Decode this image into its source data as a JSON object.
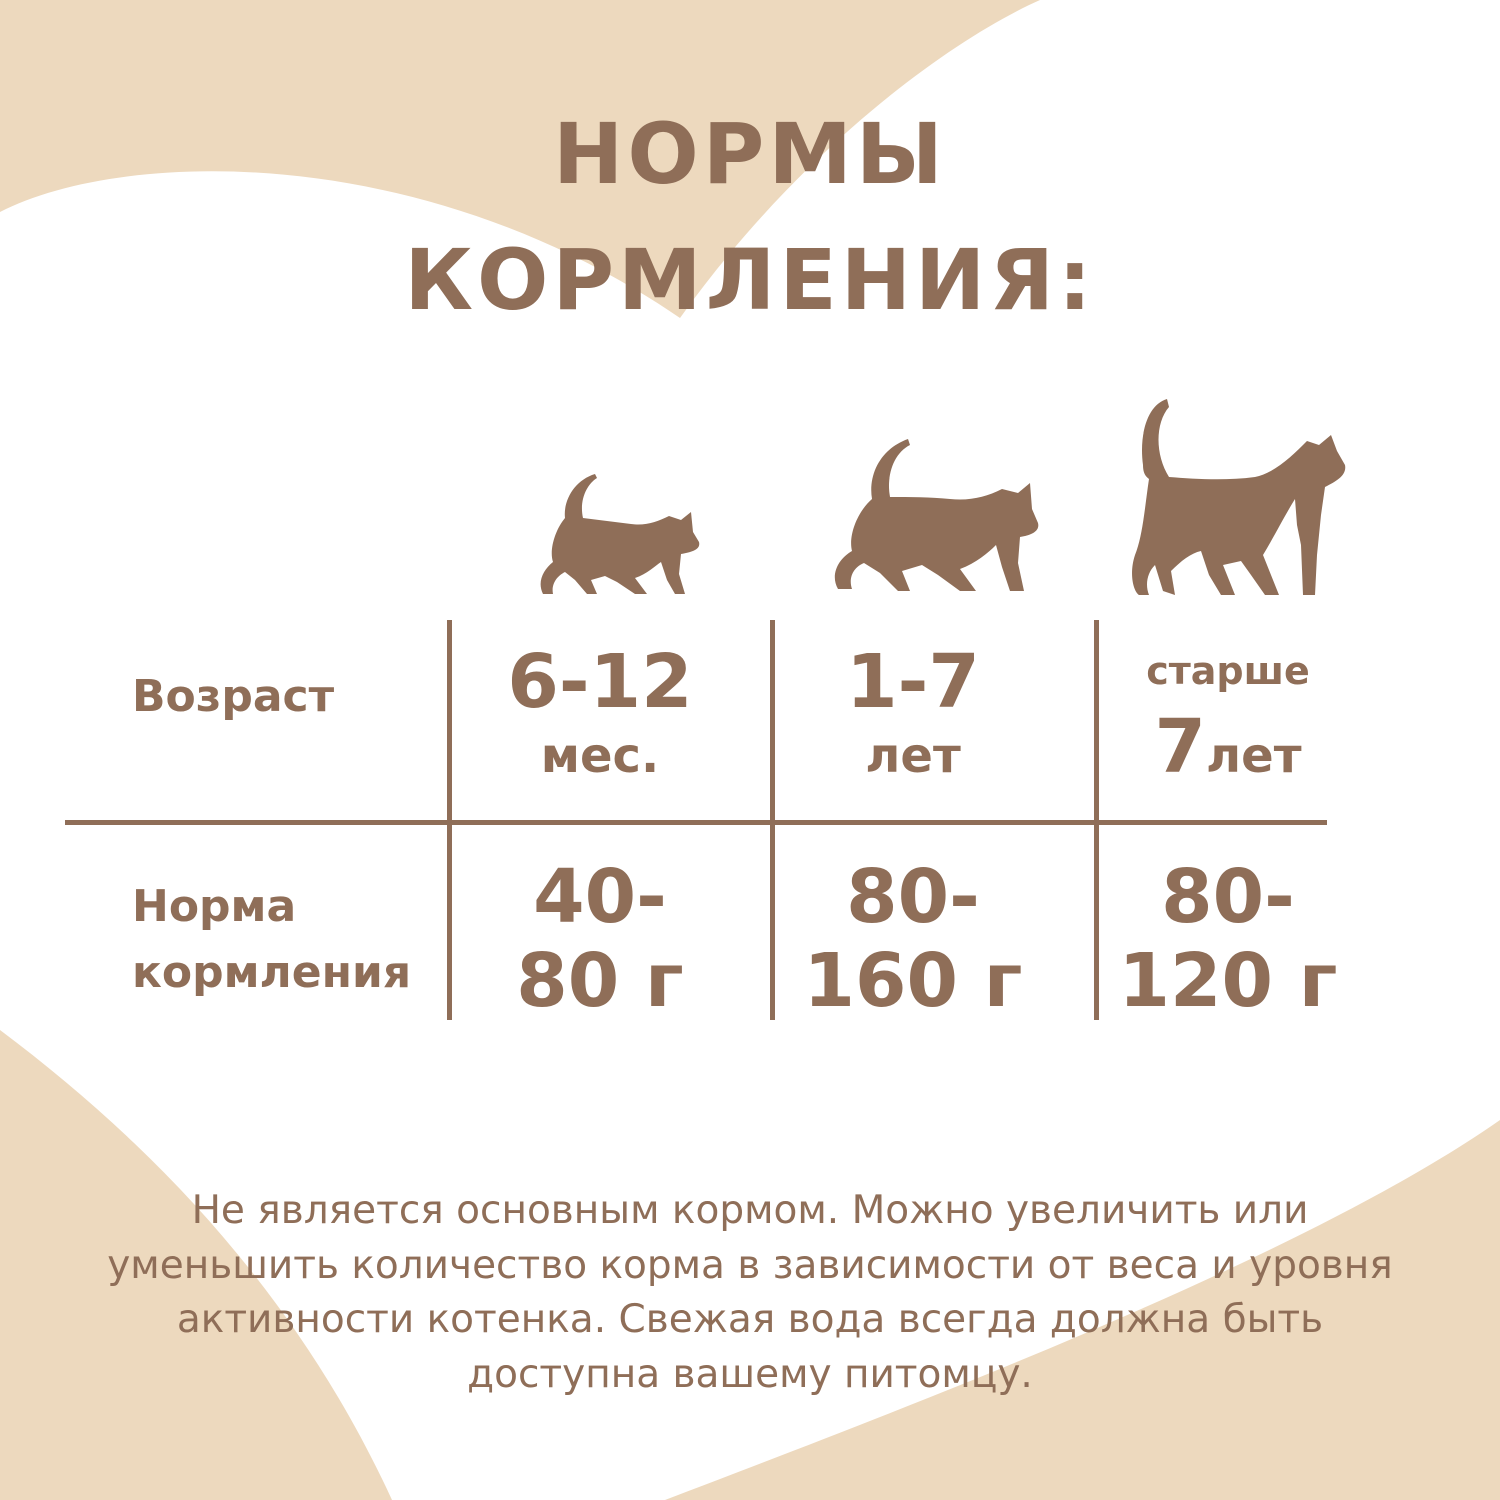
{
  "colors": {
    "background": "#EDD9BE",
    "panel": "#FFFFFF",
    "text": "#8F6E58"
  },
  "title": {
    "line1": "НОРМЫ",
    "line2": "КОРМЛЕНИЯ:"
  },
  "table": {
    "row_labels": {
      "age": "Возраст",
      "norm_line1": "Норма",
      "norm_line2": "кормления"
    },
    "columns": [
      {
        "icon": "kitten-icon",
        "age_top": "6-12",
        "age_bottom": "мес.",
        "norm_top": "40-",
        "norm_bottom": "80 г"
      },
      {
        "icon": "young-cat-icon",
        "age_top": "1-7",
        "age_bottom": "лет",
        "norm_top": "80-",
        "norm_bottom": "160 г"
      },
      {
        "icon": "adult-cat-icon",
        "age_prefix": "старше",
        "age_num": "7",
        "age_unit": "лет",
        "norm_top": "80-",
        "norm_bottom": "120 г"
      }
    ]
  },
  "footer": {
    "lines": [
      "Не является основным кормом. Можно увеличить или",
      "уменьшить количество корма в зависимости от веса и уровня",
      "активности котенка. Свежая вода всегда должна быть",
      "доступна вашему питомцу."
    ]
  }
}
